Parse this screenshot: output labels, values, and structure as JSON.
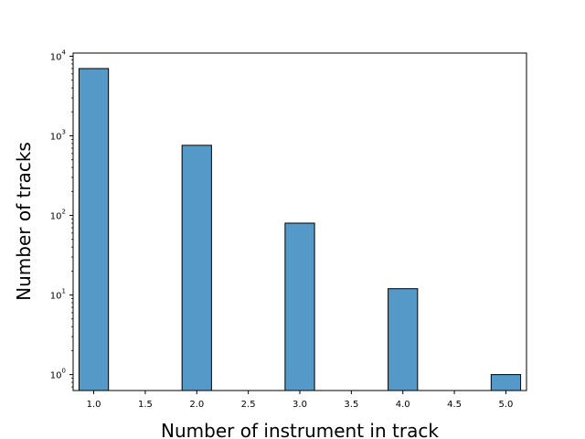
{
  "chart_data": {
    "type": "bar",
    "title": "",
    "xlabel": "Number of instrument in track",
    "ylabel": "Number of tracks",
    "y_scale": "log",
    "xlim": [
      0.8,
      5.2
    ],
    "ylim_exponents": [
      -0.2,
      4.04
    ],
    "x_ticks": [
      "1.0",
      "1.5",
      "2.0",
      "2.5",
      "3.0",
      "3.5",
      "4.0",
      "4.5",
      "5.0"
    ],
    "y_ticks": [
      "10",
      "10",
      "10",
      "10",
      "10"
    ],
    "y_tick_exponents": [
      "0",
      "1",
      "2",
      "3",
      "4"
    ],
    "bar_width": 0.286,
    "bar_color": "#5499c7",
    "grid": false,
    "bars": [
      {
        "x": 1,
        "value": 7000
      },
      {
        "x": 2,
        "value": 760
      },
      {
        "x": 3,
        "value": 80
      },
      {
        "x": 4,
        "value": 12
      },
      {
        "x": 5,
        "value": 1
      }
    ]
  }
}
